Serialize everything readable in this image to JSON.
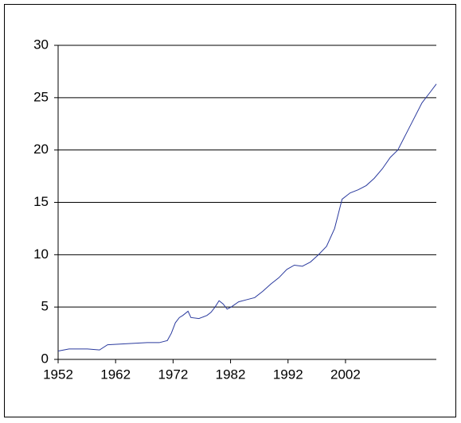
{
  "chart_data": {
    "type": "line",
    "x": [
      1952.0,
      1953.0,
      1953.9,
      1957.1,
      1959.2,
      1960.6,
      1964.0,
      1967.5,
      1969.6,
      1971.0,
      1971.7,
      1972.4,
      1973.1,
      1973.7,
      1974.6,
      1975.1,
      1976.5,
      1977.9,
      1978.6,
      1979.3,
      1980.0,
      1980.7,
      1981.4,
      1982.1,
      1983.4,
      1984.8,
      1986.2,
      1987.6,
      1989.0,
      1990.4,
      1991.8,
      1993.1,
      1994.5,
      1995.9,
      1997.3,
      1998.7,
      2000.1,
      2000.8,
      2001.4,
      2002.8,
      2004.2,
      2005.6,
      2007.0,
      2008.4,
      2009.8,
      2011.1,
      2012.5,
      2013.9,
      2015.3,
      2016.7,
      2017.8
    ],
    "values": [
      0.8,
      0.9,
      1.0,
      1.0,
      0.9,
      1.4,
      1.5,
      1.6,
      1.6,
      1.8,
      2.5,
      3.5,
      4.0,
      4.2,
      4.6,
      4.0,
      3.9,
      4.2,
      4.5,
      5.0,
      5.6,
      5.3,
      4.8,
      5.0,
      5.5,
      5.7,
      5.9,
      6.5,
      7.2,
      7.8,
      8.6,
      9.0,
      8.9,
      9.3,
      10.0,
      10.8,
      12.5,
      14.0,
      15.3,
      15.9,
      16.2,
      16.6,
      17.3,
      18.2,
      19.3,
      20.0,
      21.5,
      23.0,
      24.5,
      25.5,
      26.3
    ],
    "color": "#2a3a9e",
    "xlim": [
      1952,
      2017.8
    ],
    "xticks": [
      1952,
      1962,
      1972,
      1982,
      1992,
      2002
    ],
    "ylim": [
      0,
      30
    ],
    "yticks": [
      0,
      5,
      10,
      15,
      20,
      25,
      30
    ],
    "grid": true
  }
}
